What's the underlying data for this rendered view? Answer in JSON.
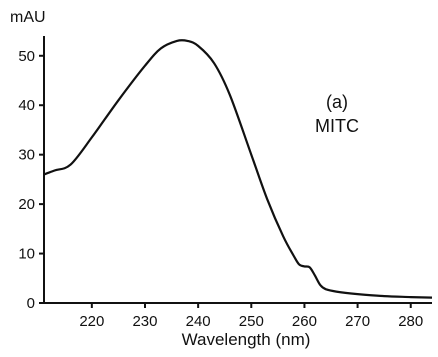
{
  "chart_data": {
    "type": "line",
    "title": "",
    "xlabel": "Wavelength (nm)",
    "ylabel": "mAU",
    "xlim": [
      211,
      284
    ],
    "ylim": [
      0,
      54
    ],
    "xticks": [
      220,
      230,
      240,
      250,
      260,
      270,
      280
    ],
    "yticks": [
      0,
      10,
      20,
      30,
      40,
      50
    ],
    "annotation": [
      "(a)",
      "MITC"
    ],
    "grid": false,
    "series": [
      {
        "color": "#111111",
        "x": [
          211,
          213,
          216,
          220,
          225,
          230,
          233,
          236,
          238,
          240,
          243,
          246,
          250,
          253,
          256,
          258,
          259,
          260,
          261,
          262,
          263,
          264,
          266,
          270,
          275,
          280,
          284
        ],
        "y": [
          26.0,
          26.8,
          28.0,
          33.5,
          41.0,
          48.0,
          51.5,
          53.0,
          53.0,
          52.0,
          48.5,
          42.0,
          30.0,
          21.0,
          13.5,
          9.5,
          7.8,
          7.4,
          7.2,
          5.5,
          3.6,
          2.8,
          2.3,
          1.8,
          1.4,
          1.2,
          1.1
        ]
      }
    ]
  }
}
